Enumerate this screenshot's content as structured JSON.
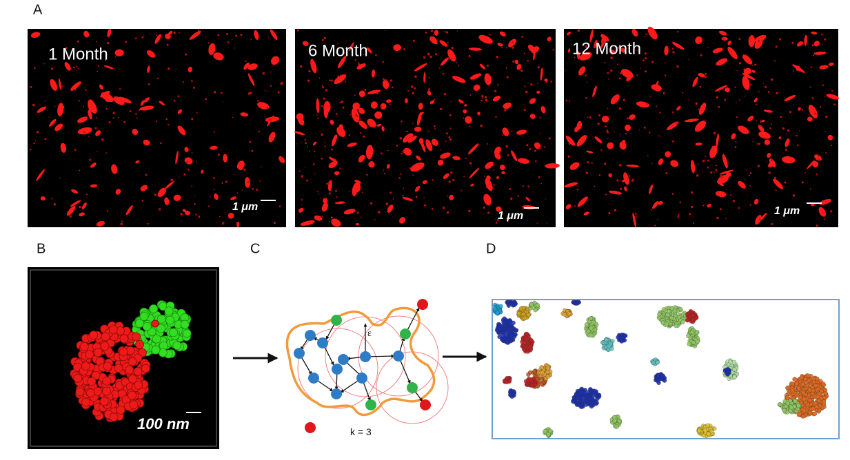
{
  "panels": {
    "A": {
      "label": "A",
      "images": [
        {
          "caption": "1 Month",
          "scale_bar": "1 μm"
        },
        {
          "caption": "6 Month",
          "scale_bar": "1 μm"
        },
        {
          "caption": "12 Month",
          "scale_bar": "1 μm"
        }
      ]
    },
    "B": {
      "label": "B",
      "scale_bar": "100 nm"
    },
    "C": {
      "label": "C",
      "epsilon": "ε",
      "k": "k = 3"
    },
    "D": {
      "label": "D"
    }
  }
}
